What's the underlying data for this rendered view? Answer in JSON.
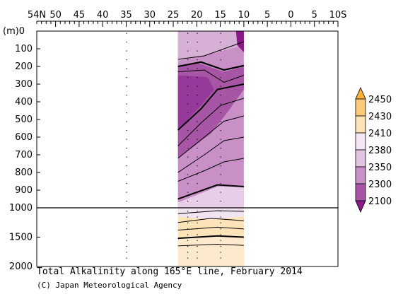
{
  "chart_data": {
    "type": "heatmap",
    "title": "Total Alkalinity along 165°E line, February 2014",
    "credit": "(C) Japan Meteorological Agency",
    "depth_unit": "(m)",
    "x_ticks": [
      "54N",
      "50",
      "45",
      "40",
      "35",
      "30",
      "25",
      "20",
      "15",
      "10",
      "5",
      "0",
      "5",
      "10S"
    ],
    "x_range": [
      54,
      -10
    ],
    "depth_ticks_upper": [
      "0",
      "100",
      "200",
      "300",
      "400",
      "500",
      "600",
      "700",
      "800",
      "900",
      "1000"
    ],
    "depth_ticks_lower": [
      "1000",
      "1500",
      "2000"
    ],
    "depth_range_upper": [
      0,
      1000
    ],
    "depth_range_lower": [
      1000,
      2000
    ],
    "section_latitudes": [
      24,
      10
    ],
    "station_latitudes": [
      35,
      22,
      20,
      15
    ],
    "colorbar": {
      "levels": [
        "2450",
        "2430",
        "2410",
        "2380",
        "2350",
        "2300",
        "2100"
      ],
      "colors": [
        "#fbb03b",
        "#fdc97a",
        "#fde3b8",
        "#f5e6f3",
        "#e0c4e0",
        "#c890c7",
        "#a656a4",
        "#8b1a89"
      ]
    },
    "colors": {
      "high_fill": "#fde3b8",
      "mid_fill": "#e7cde7",
      "low_fill": "#c890c7",
      "min_fill": "#a656a4",
      "core_fill": "#8b1a89"
    }
  }
}
